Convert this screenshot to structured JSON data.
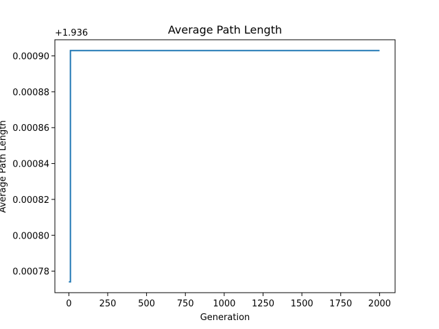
{
  "chart_data": {
    "type": "line",
    "title": "Average Path Length",
    "xlabel": "Generation",
    "ylabel": "Average Path Length",
    "offset_label": "+1.936",
    "offset": 1.936,
    "xlim": [
      -90,
      2100
    ],
    "ylim": [
      0.000768,
      0.000909
    ],
    "x_ticks": [
      0,
      250,
      500,
      750,
      1000,
      1250,
      1500,
      1750,
      2000
    ],
    "x_tick_labels": [
      "0",
      "250",
      "500",
      "750",
      "1000",
      "1250",
      "1500",
      "1750",
      "2000"
    ],
    "y_ticks": [
      0.00078,
      0.0008,
      0.00082,
      0.00084,
      0.00086,
      0.00088,
      0.0009
    ],
    "y_tick_labels": [
      "0.00078",
      "0.00080",
      "0.00082",
      "0.00084",
      "0.00086",
      "0.00088",
      "0.00090"
    ],
    "grid": false,
    "series": [
      {
        "color": "#1f77b4",
        "x": [
          0,
          5,
          5,
          10,
          10,
          2000
        ],
        "y": [
          0.000774,
          0.000774,
          0.000774,
          0.000774,
          0.000903,
          0.000903
        ]
      }
    ]
  }
}
